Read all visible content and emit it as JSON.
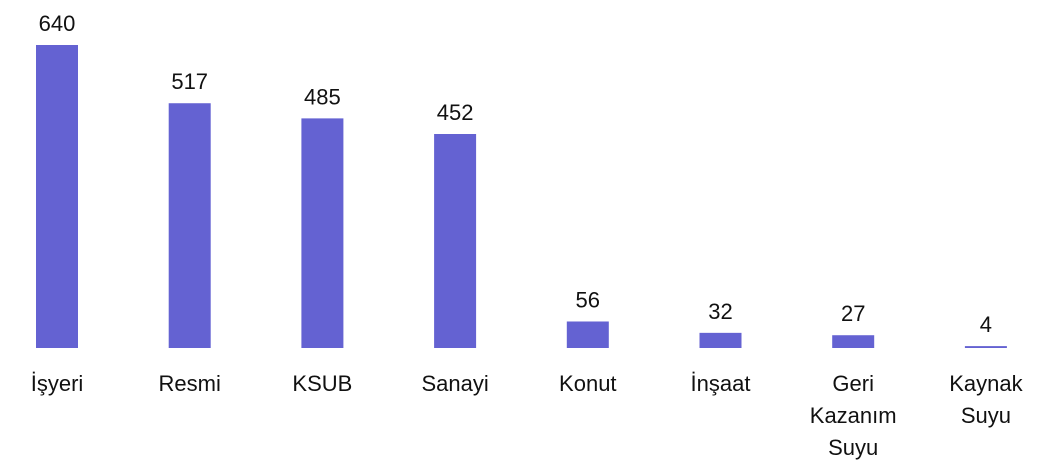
{
  "chart_data": {
    "type": "bar",
    "categories": [
      "İşyeri",
      "Resmi",
      "KSUB",
      "Sanayi",
      "Konut",
      "İnşaat",
      "Geri Kazanım Suyu",
      "Kaynak Suyu"
    ],
    "values": [
      640,
      517,
      485,
      452,
      56,
      32,
      27,
      4
    ],
    "color": "#6462d2"
  }
}
